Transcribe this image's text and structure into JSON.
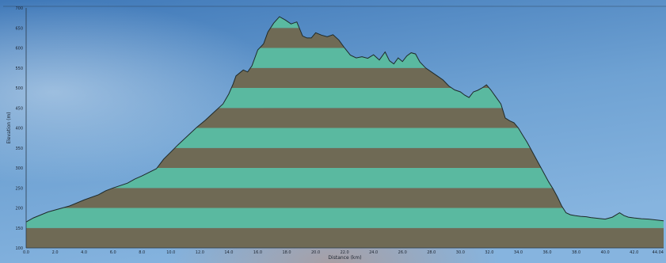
{
  "colors": {
    "sky_top": "#3f78b8",
    "sky_mid": "#6fa2d3",
    "sky_bottom": "#86b4df",
    "band_green": "#5ab9a0",
    "band_brown": "#6f6a55",
    "outline": "#1e2a2a"
  },
  "chart_data": {
    "type": "area",
    "title": "",
    "xlabel": "Distance (km)",
    "ylabel": "Elevation (m)",
    "xlim": [
      0,
      44.04
    ],
    "ylim": [
      100,
      700
    ],
    "grid": false,
    "legend": "none",
    "x_ticks": [
      "0.0",
      "2.0",
      "4.0",
      "6.0",
      "8.0",
      "10.0",
      "12.0",
      "14.0",
      "16.0",
      "18.0",
      "20.0",
      "22.0",
      "24.0",
      "26.0",
      "28.0",
      "30.0",
      "32.0",
      "34.0",
      "36.0",
      "38.0",
      "40.0",
      "42.0",
      "44.04"
    ],
    "y_ticks": [
      "700",
      "650",
      "600",
      "550",
      "500",
      "450",
      "400",
      "350",
      "300",
      "250",
      "200",
      "150",
      "100"
    ],
    "band_interval": 50,
    "series": [
      {
        "x": [
          0.0,
          0.5,
          1.5,
          3.0,
          4.0,
          5.0,
          5.5,
          6.0,
          7.0,
          7.5,
          8.0,
          9.0,
          9.5,
          10.0,
          10.5,
          11.0,
          11.8,
          12.4,
          13.0,
          13.6,
          14.0,
          14.3,
          14.5,
          15.0,
          15.3,
          15.6,
          16.0,
          16.4,
          16.7,
          17.1,
          17.5,
          17.9,
          18.3,
          18.7,
          19.1,
          19.4,
          19.7,
          20.0,
          20.4,
          20.8,
          21.2,
          21.6,
          22.0,
          22.4,
          22.8,
          23.2,
          23.6,
          24.0,
          24.4,
          24.8,
          25.1,
          25.4,
          25.7,
          26.0,
          26.3,
          26.6,
          26.9,
          27.2,
          27.6,
          28.0,
          28.4,
          28.8,
          29.2,
          29.6,
          30.0,
          30.3,
          30.6,
          30.9,
          31.2,
          31.5,
          31.8,
          32.1,
          32.4,
          32.8,
          33.1,
          33.4,
          33.7,
          34.0,
          34.3,
          34.6,
          34.9,
          35.2,
          35.5,
          35.8,
          36.1,
          36.4,
          36.7,
          37.0,
          37.3,
          37.6,
          37.9,
          38.3,
          38.7,
          39.0,
          39.5,
          40.0,
          40.5,
          41.0,
          41.3,
          41.6,
          42.0,
          42.5,
          43.0,
          43.5,
          44.04
        ],
        "y": [
          165,
          175,
          190,
          205,
          220,
          233,
          243,
          250,
          262,
          272,
          280,
          298,
          322,
          340,
          358,
          375,
          402,
          420,
          440,
          460,
          485,
          510,
          530,
          545,
          540,
          555,
          595,
          610,
          640,
          662,
          678,
          670,
          660,
          665,
          630,
          625,
          625,
          638,
          632,
          628,
          633,
          620,
          600,
          582,
          575,
          578,
          574,
          583,
          570,
          590,
          568,
          560,
          575,
          566,
          580,
          588,
          585,
          565,
          550,
          540,
          530,
          520,
          505,
          495,
          490,
          482,
          476,
          490,
          494,
          500,
          508,
          495,
          480,
          460,
          425,
          418,
          413,
          400,
          382,
          365,
          345,
          325,
          305,
          285,
          265,
          248,
          228,
          205,
          188,
          183,
          181,
          179,
          178,
          176,
          174,
          172,
          177,
          188,
          181,
          177,
          175,
          173,
          172,
          170,
          168
        ]
      }
    ]
  }
}
